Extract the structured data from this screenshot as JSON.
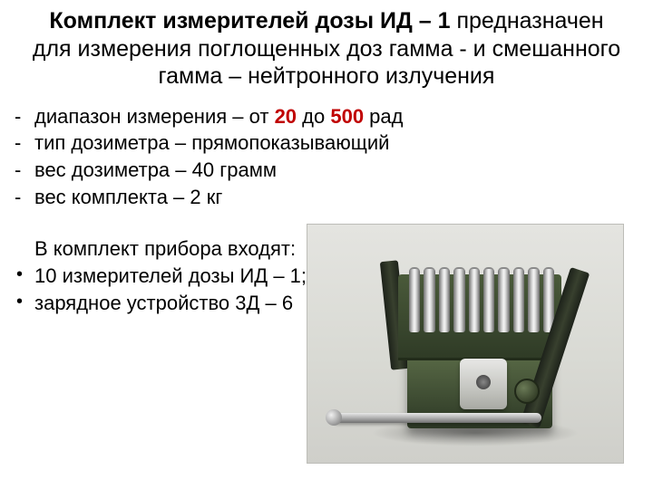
{
  "heading": {
    "bold": "Комплект измерителей дозы ИД – 1",
    "rest": "предназначен для измерения поглощенных доз гамма -  и смешанного гамма – нейтронного излучения"
  },
  "specs": {
    "range_prefix": "диапазон измерения – от ",
    "range_low": "20",
    "range_mid": " до ",
    "range_high": "500",
    "range_suffix": " рад",
    "type": "тип дозиметра – прямопоказывающий",
    "weight_dosimeter": "вес дозиметра – 40 грамм",
    "weight_kit": "вес комплекта – 2 кг"
  },
  "kit": {
    "title": "В комплект прибора входят:",
    "item1": "10 измерителей дозы ИД – 1;",
    "item2": "зарядное устройство 3Д – 6"
  },
  "photo": {
    "background_top": "#e4e4e0",
    "case_color": "#3f4d33",
    "tube_count": 10
  }
}
